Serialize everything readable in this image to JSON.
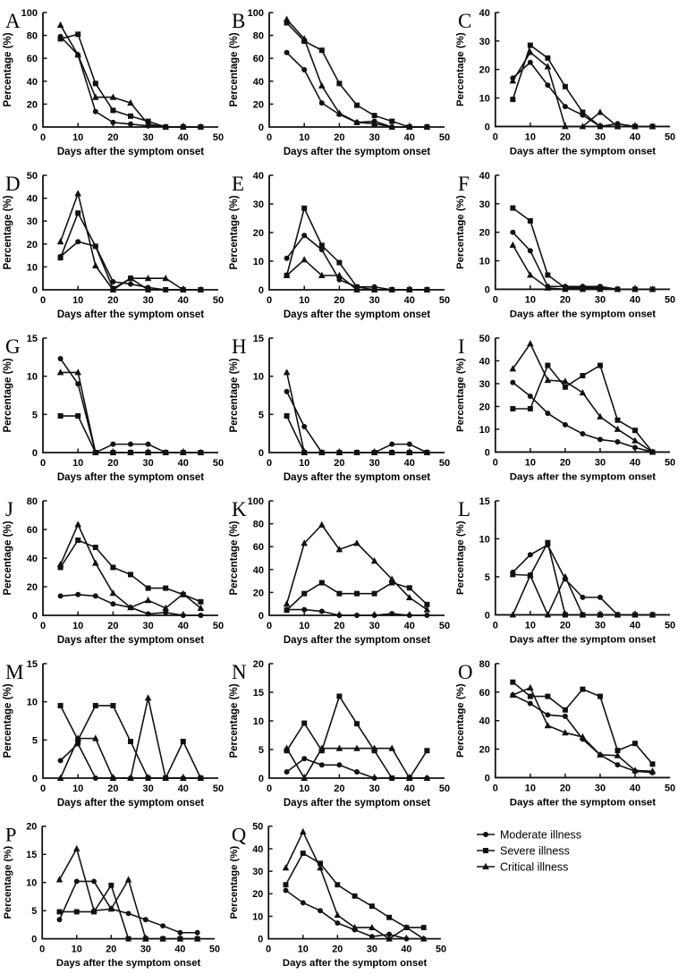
{
  "figure": {
    "background": "#ffffff",
    "ink_color": "#111111",
    "grid": "off",
    "panels_per_row": 3
  },
  "legend": {
    "position": "bottom-right-cell",
    "items": [
      {
        "name": "Moderate illness",
        "marker": "circle"
      },
      {
        "name": "Severe illness",
        "marker": "square"
      },
      {
        "name": "Critical illness",
        "marker": "triangle"
      }
    ]
  },
  "axis": {
    "xlabel": "Days after the symptom onset",
    "ylabel": "Percentage (%)",
    "x": [
      5,
      10,
      15,
      20,
      25,
      30,
      35,
      40,
      45
    ],
    "xlim": [
      0,
      50
    ],
    "xticks": [
      0,
      10,
      20,
      30,
      40,
      50
    ]
  },
  "chart_data": [
    {
      "type": "line",
      "label": "A",
      "ylim": [
        0,
        100
      ],
      "yticks": [
        0,
        20,
        40,
        60,
        80,
        100
      ],
      "series": [
        {
          "name": "Moderate illness",
          "values": [
            79,
            63,
            13.5,
            4,
            2.5,
            1,
            0,
            0,
            0
          ]
        },
        {
          "name": "Severe illness",
          "values": [
            77,
            81,
            38,
            14.5,
            9.5,
            5,
            0,
            0,
            0
          ]
        },
        {
          "name": "Critical illness",
          "values": [
            89,
            63,
            26,
            26,
            21,
            2.5,
            0,
            0,
            0
          ]
        }
      ]
    },
    {
      "type": "line",
      "label": "B",
      "ylim": [
        0,
        100
      ],
      "yticks": [
        0,
        20,
        40,
        60,
        80,
        100
      ],
      "series": [
        {
          "name": "Moderate illness",
          "values": [
            65,
            50,
            21,
            11,
            4,
            5,
            0,
            0,
            0
          ]
        },
        {
          "name": "Severe illness",
          "values": [
            91,
            75,
            67,
            38,
            19,
            10,
            5,
            0,
            0
          ]
        },
        {
          "name": "Critical illness",
          "values": [
            94,
            77,
            36,
            12,
            4,
            3,
            0,
            0,
            0
          ]
        }
      ]
    },
    {
      "type": "line",
      "label": "C",
      "ylim": [
        0,
        40
      ],
      "yticks": [
        0,
        10,
        20,
        30,
        40
      ],
      "series": [
        {
          "name": "Moderate illness",
          "values": [
            17,
            22.5,
            14.5,
            7,
            4,
            0,
            1,
            0,
            0
          ]
        },
        {
          "name": "Severe illness",
          "values": [
            9.5,
            28.5,
            24,
            14,
            5,
            0,
            0,
            0,
            0
          ]
        },
        {
          "name": "Critical illness",
          "values": [
            16,
            26,
            21,
            0,
            0,
            5,
            0,
            0,
            0
          ]
        }
      ]
    },
    {
      "type": "line",
      "label": "D",
      "ylim": [
        0,
        50
      ],
      "yticks": [
        0,
        10,
        20,
        30,
        40,
        50
      ],
      "series": [
        {
          "name": "Moderate illness",
          "values": [
            14.5,
            21,
            19,
            3.5,
            2.5,
            1,
            0,
            0,
            0
          ]
        },
        {
          "name": "Severe illness",
          "values": [
            14,
            33.5,
            19,
            0.5,
            5,
            0,
            0,
            0,
            0
          ]
        },
        {
          "name": "Critical illness",
          "values": [
            21,
            42,
            10.5,
            0,
            5,
            5,
            5,
            0,
            0
          ]
        }
      ]
    },
    {
      "type": "line",
      "label": "E",
      "ylim": [
        0,
        40
      ],
      "yticks": [
        0,
        10,
        20,
        30,
        40
      ],
      "series": [
        {
          "name": "Moderate illness",
          "values": [
            11,
            19,
            14,
            3.5,
            1,
            1,
            0,
            0,
            0
          ]
        },
        {
          "name": "Severe illness",
          "values": [
            5,
            28.5,
            15.5,
            9.5,
            1,
            0,
            0,
            0,
            0
          ]
        },
        {
          "name": "Critical illness",
          "values": [
            5,
            10.5,
            5,
            5,
            0,
            0,
            0,
            0,
            0
          ]
        }
      ]
    },
    {
      "type": "line",
      "label": "F",
      "ylim": [
        0,
        40
      ],
      "yticks": [
        0,
        10,
        20,
        30,
        40
      ],
      "series": [
        {
          "name": "Moderate illness",
          "values": [
            20,
            13.5,
            1,
            1,
            1,
            1,
            0,
            0,
            0
          ]
        },
        {
          "name": "Severe illness",
          "values": [
            28.5,
            24,
            5,
            0.5,
            0.5,
            0.5,
            0,
            0,
            0
          ]
        },
        {
          "name": "Critical illness",
          "values": [
            15.5,
            5,
            0.5,
            0,
            0,
            0,
            0,
            0,
            0
          ]
        }
      ]
    },
    {
      "type": "line",
      "label": "G",
      "ylim": [
        0,
        15
      ],
      "yticks": [
        0,
        5,
        10,
        15
      ],
      "series": [
        {
          "name": "Moderate illness",
          "values": [
            12.3,
            9,
            0,
            1.1,
            1.1,
            1.1,
            0,
            0,
            0
          ]
        },
        {
          "name": "Severe illness",
          "values": [
            4.8,
            4.8,
            0,
            0,
            0,
            0,
            0,
            0,
            0
          ]
        },
        {
          "name": "Critical illness",
          "values": [
            10.5,
            10.5,
            0,
            0,
            0,
            0,
            0,
            0,
            0
          ]
        }
      ]
    },
    {
      "type": "line",
      "label": "H",
      "ylim": [
        0,
        15
      ],
      "yticks": [
        0,
        5,
        10,
        15
      ],
      "series": [
        {
          "name": "Moderate illness",
          "values": [
            8,
            3.4,
            0,
            0,
            0,
            0,
            1.1,
            1.1,
            0
          ]
        },
        {
          "name": "Severe illness",
          "values": [
            4.8,
            0,
            0,
            0,
            0,
            0,
            0,
            0,
            0
          ]
        },
        {
          "name": "Critical illness",
          "values": [
            10.5,
            0,
            0,
            0,
            0,
            0,
            0,
            0,
            0
          ]
        }
      ]
    },
    {
      "type": "line",
      "label": "I",
      "ylim": [
        0,
        50
      ],
      "yticks": [
        0,
        10,
        20,
        30,
        40,
        50
      ],
      "series": [
        {
          "name": "Moderate illness",
          "values": [
            30.5,
            24.5,
            17,
            12,
            8,
            5.5,
            4.5,
            2,
            0
          ]
        },
        {
          "name": "Severe illness",
          "values": [
            19,
            19,
            38,
            28.5,
            33.5,
            38,
            14,
            9.5,
            0
          ]
        },
        {
          "name": "Critical illness",
          "values": [
            36.5,
            47.5,
            31.5,
            31,
            26,
            15.5,
            10,
            5,
            0
          ]
        }
      ]
    },
    {
      "type": "line",
      "label": "J",
      "ylim": [
        0,
        80
      ],
      "yticks": [
        0,
        20,
        40,
        60,
        80
      ],
      "series": [
        {
          "name": "Moderate illness",
          "values": [
            13.5,
            14.5,
            13.5,
            8,
            5.5,
            1,
            2,
            0,
            0
          ]
        },
        {
          "name": "Severe illness",
          "values": [
            33.5,
            52.5,
            47.5,
            33.5,
            28.5,
            19,
            19,
            14.5,
            9.5
          ]
        },
        {
          "name": "Critical illness",
          "values": [
            35.5,
            63.5,
            36.5,
            15.5,
            5.5,
            10.5,
            5,
            15,
            5
          ]
        }
      ]
    },
    {
      "type": "line",
      "label": "K",
      "ylim": [
        0,
        100
      ],
      "yticks": [
        0,
        20,
        40,
        60,
        80,
        100
      ],
      "series": [
        {
          "name": "Moderate illness",
          "values": [
            5,
            5,
            3.5,
            0,
            0,
            0,
            1.5,
            0,
            0
          ]
        },
        {
          "name": "Severe illness",
          "values": [
            4.5,
            19,
            28.5,
            19,
            19,
            19,
            28.5,
            24,
            9.5
          ]
        },
        {
          "name": "Critical illness",
          "values": [
            10,
            63,
            79,
            57.5,
            63,
            47.5,
            31.5,
            15.5,
            5
          ]
        }
      ]
    },
    {
      "type": "line",
      "label": "L",
      "ylim": [
        0,
        15
      ],
      "yticks": [
        0,
        5,
        10,
        15
      ],
      "series": [
        {
          "name": "Moderate illness",
          "values": [
            5.6,
            7.9,
            9.2,
            4.7,
            2.3,
            2.3,
            0,
            0,
            0
          ]
        },
        {
          "name": "Severe illness",
          "values": [
            5.3,
            5.2,
            9.5,
            0,
            0,
            0,
            0,
            0,
            0
          ]
        },
        {
          "name": "Critical illness",
          "values": [
            0,
            5.2,
            0,
            5,
            0,
            0,
            0,
            0,
            0
          ]
        }
      ]
    },
    {
      "type": "line",
      "label": "M",
      "ylim": [
        0,
        15
      ],
      "yticks": [
        0,
        5,
        10,
        15
      ],
      "series": [
        {
          "name": "Moderate illness",
          "values": [
            2.3,
            4.5,
            0,
            0,
            0,
            0,
            0,
            0,
            0
          ]
        },
        {
          "name": "Severe illness",
          "values": [
            9.5,
            5,
            9.5,
            9.5,
            4.8,
            0,
            0,
            4.8,
            0
          ]
        },
        {
          "name": "Critical illness",
          "values": [
            0,
            5.2,
            5.2,
            0,
            0,
            10.5,
            0,
            0,
            0
          ]
        }
      ]
    },
    {
      "type": "line",
      "label": "N",
      "ylim": [
        0,
        20
      ],
      "yticks": [
        0,
        5,
        10,
        15,
        20
      ],
      "series": [
        {
          "name": "Moderate illness",
          "values": [
            1.1,
            3.4,
            2.3,
            2.3,
            1.1,
            0,
            0,
            0,
            0
          ]
        },
        {
          "name": "Severe illness",
          "values": [
            4.8,
            9.6,
            4.8,
            14.3,
            9.5,
            4.8,
            0,
            0,
            4.8
          ]
        },
        {
          "name": "Critical illness",
          "values": [
            5.2,
            0,
            5.2,
            5.2,
            5.2,
            5.2,
            5.2,
            0,
            0
          ]
        }
      ]
    },
    {
      "type": "line",
      "label": "O",
      "ylim": [
        0,
        80
      ],
      "yticks": [
        0,
        20,
        40,
        60,
        80
      ],
      "series": [
        {
          "name": "Moderate illness",
          "values": [
            58,
            52,
            44,
            43,
            27,
            16,
            9,
            4.5,
            3.5
          ]
        },
        {
          "name": "Severe illness",
          "values": [
            67,
            57,
            57,
            47.5,
            62,
            57,
            19,
            24,
            9.5
          ]
        },
        {
          "name": "Critical illness",
          "values": [
            58,
            63,
            36.5,
            31.5,
            28.5,
            16,
            15.5,
            5,
            4.5
          ]
        }
      ]
    },
    {
      "type": "line",
      "label": "P",
      "ylim": [
        0,
        20
      ],
      "yticks": [
        0,
        5,
        10,
        15,
        20
      ],
      "series": [
        {
          "name": "Moderate illness",
          "values": [
            3.4,
            10.2,
            10.2,
            5.3,
            4.5,
            3.4,
            2.3,
            1.1,
            1.1
          ]
        },
        {
          "name": "Severe illness",
          "values": [
            4.8,
            4.8,
            4.8,
            9.5,
            0,
            0,
            0,
            0,
            0
          ]
        },
        {
          "name": "Critical illness",
          "values": [
            10.5,
            16,
            5,
            5.3,
            10.5,
            0,
            0,
            0,
            0
          ]
        }
      ]
    },
    {
      "type": "line",
      "label": "Q",
      "ylim": [
        0,
        50
      ],
      "yticks": [
        0,
        10,
        20,
        30,
        40,
        50
      ],
      "series": [
        {
          "name": "Moderate illness",
          "values": [
            21.5,
            16,
            12.5,
            7,
            4,
            1,
            2,
            0,
            0
          ]
        },
        {
          "name": "Severe illness",
          "values": [
            24,
            38,
            33.5,
            24,
            19,
            14.5,
            9.5,
            5,
            5
          ]
        },
        {
          "name": "Critical illness",
          "values": [
            31.5,
            47.5,
            31.5,
            10.5,
            5,
            5,
            0,
            5,
            0
          ]
        }
      ]
    }
  ]
}
